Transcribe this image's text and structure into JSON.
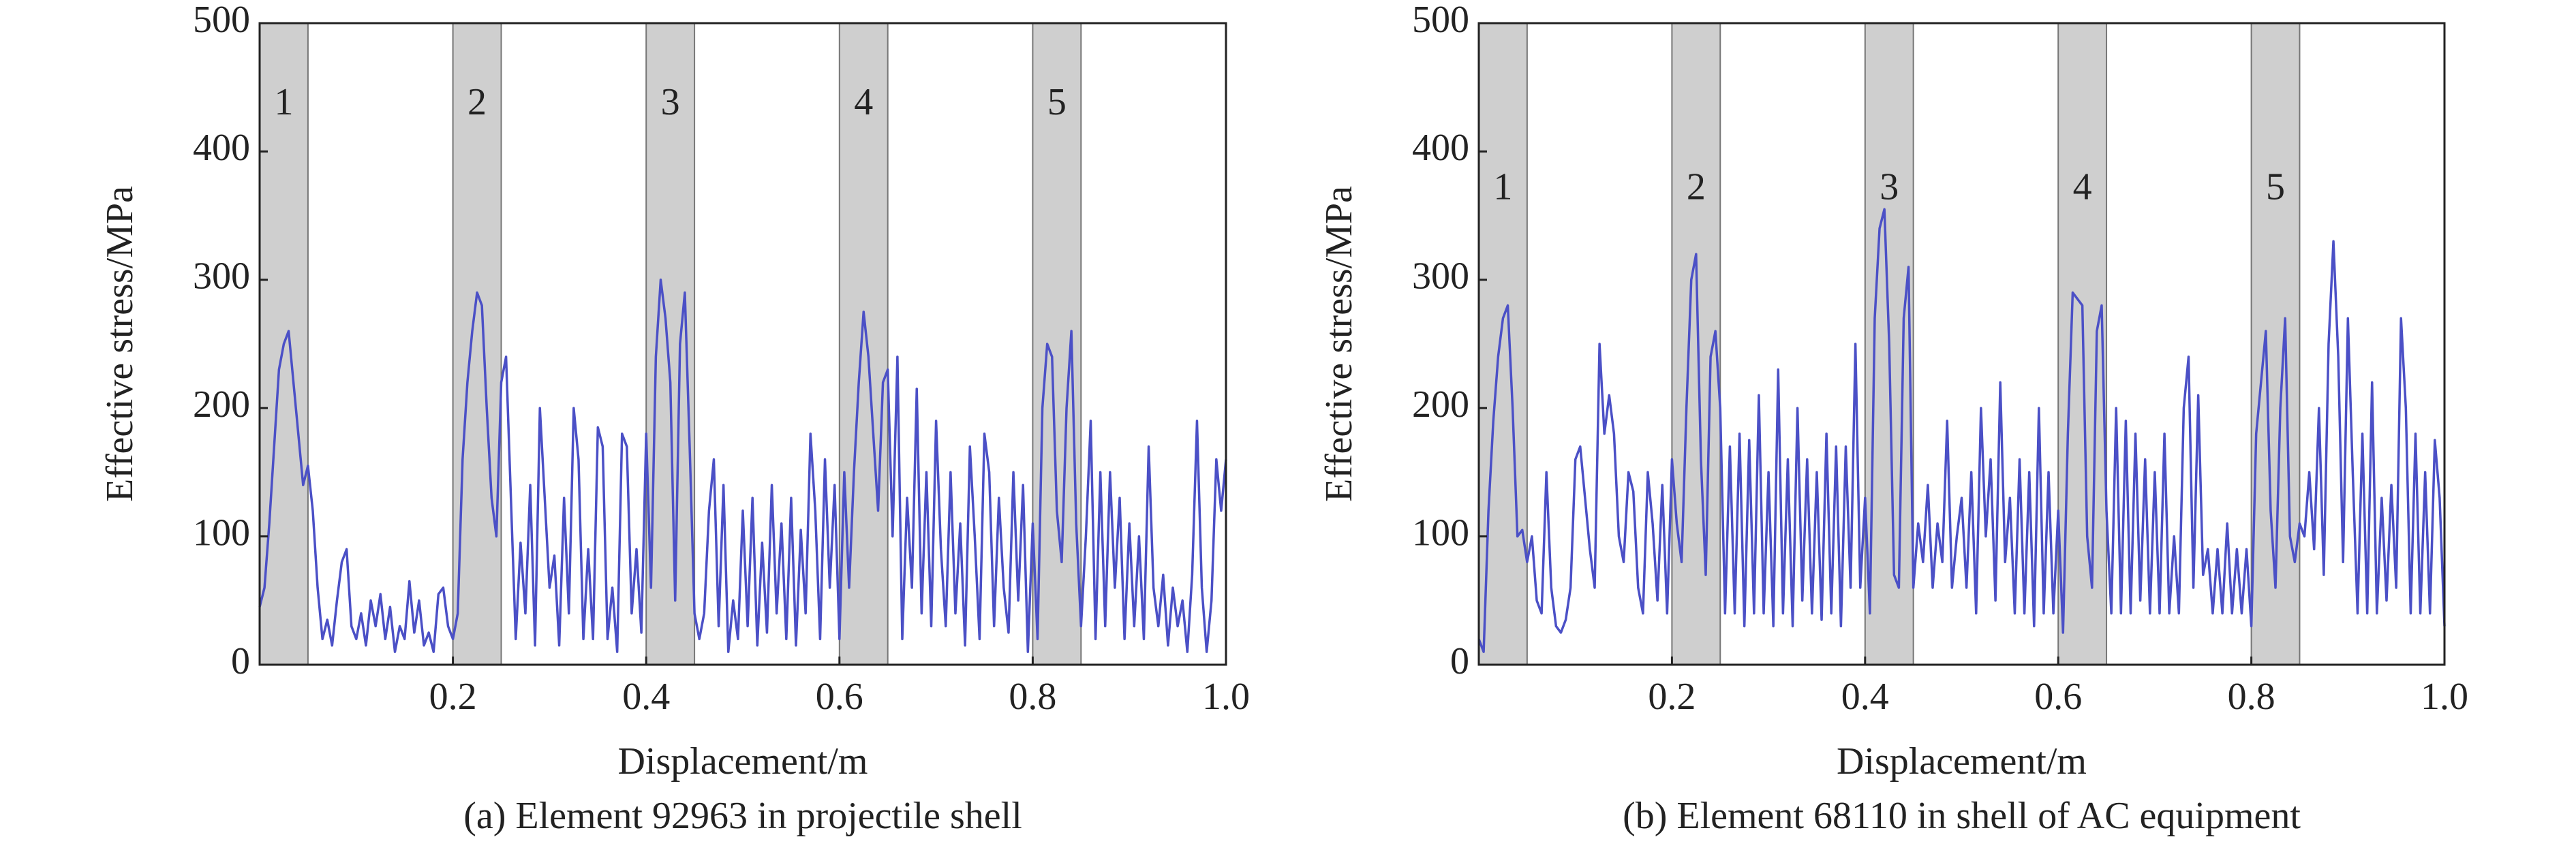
{
  "chart_data": [
    {
      "type": "line",
      "title": "(a) Element 92963 in projectile shell",
      "xlabel": "Displacement/m",
      "ylabel": "Effective stress/MPa",
      "xlim": [
        0,
        1
      ],
      "ylim": [
        0,
        500
      ],
      "xticks": [
        0.2,
        0.4,
        0.6,
        0.8,
        {
          "value": 1,
          "label": "1.0"
        }
      ],
      "yticks": [
        0,
        100,
        200,
        300,
        400,
        500
      ],
      "band_color": "#cfcfcf",
      "bands": [
        {
          "x": [
            0,
            0.05
          ],
          "label": "1"
        },
        {
          "x": [
            0.2,
            0.25
          ],
          "label": "2"
        },
        {
          "x": [
            0.4,
            0.45
          ],
          "label": "3"
        },
        {
          "x": [
            0.6,
            0.65
          ],
          "label": "4"
        },
        {
          "x": [
            0.8,
            0.85
          ],
          "label": "5"
        }
      ],
      "x": [
        0,
        0.005,
        0.01,
        0.015,
        0.02,
        0.025,
        0.03,
        0.035,
        0.04,
        0.045,
        0.05,
        0.055,
        0.06,
        0.065,
        0.07,
        0.075,
        0.08,
        0.085,
        0.09,
        0.095,
        0.1,
        0.105,
        0.11,
        0.115,
        0.12,
        0.125,
        0.13,
        0.135,
        0.14,
        0.145,
        0.15,
        0.155,
        0.16,
        0.165,
        0.17,
        0.175,
        0.18,
        0.185,
        0.19,
        0.195,
        0.2,
        0.205,
        0.21,
        0.215,
        0.22,
        0.225,
        0.23,
        0.235,
        0.24,
        0.245,
        0.25,
        0.255,
        0.26,
        0.265,
        0.27,
        0.275,
        0.28,
        0.285,
        0.29,
        0.295,
        0.3,
        0.305,
        0.31,
        0.315,
        0.32,
        0.325,
        0.33,
        0.335,
        0.34,
        0.345,
        0.35,
        0.355,
        0.36,
        0.365,
        0.37,
        0.375,
        0.38,
        0.385,
        0.39,
        0.395,
        0.4,
        0.405,
        0.41,
        0.415,
        0.42,
        0.425,
        0.43,
        0.435,
        0.44,
        0.445,
        0.45,
        0.455,
        0.46,
        0.465,
        0.47,
        0.475,
        0.48,
        0.485,
        0.49,
        0.495,
        0.5,
        0.505,
        0.51,
        0.515,
        0.52,
        0.525,
        0.53,
        0.535,
        0.54,
        0.545,
        0.55,
        0.555,
        0.56,
        0.565,
        0.57,
        0.575,
        0.58,
        0.585,
        0.59,
        0.595,
        0.6,
        0.605,
        0.61,
        0.615,
        0.62,
        0.625,
        0.63,
        0.635,
        0.64,
        0.645,
        0.65,
        0.655,
        0.66,
        0.665,
        0.67,
        0.675,
        0.68,
        0.685,
        0.69,
        0.695,
        0.7,
        0.705,
        0.71,
        0.715,
        0.72,
        0.725,
        0.73,
        0.735,
        0.74,
        0.745,
        0.75,
        0.755,
        0.76,
        0.765,
        0.77,
        0.775,
        0.78,
        0.785,
        0.79,
        0.795,
        0.8,
        0.805,
        0.81,
        0.815,
        0.82,
        0.825,
        0.83,
        0.835,
        0.84,
        0.845,
        0.85,
        0.855,
        0.86,
        0.865,
        0.87,
        0.875,
        0.88,
        0.885,
        0.89,
        0.895,
        0.9,
        0.905,
        0.91,
        0.915,
        0.92,
        0.925,
        0.93,
        0.935,
        0.94,
        0.945,
        0.95,
        0.955,
        0.96,
        0.965,
        0.97,
        0.975,
        0.98,
        0.985,
        0.99,
        0.995,
        1
      ],
      "series": [
        {
          "color": "#4b50c6",
          "values": [
            45,
            60,
            110,
            170,
            230,
            250,
            260,
            220,
            180,
            140,
            155,
            120,
            60,
            20,
            35,
            15,
            50,
            80,
            90,
            30,
            20,
            40,
            15,
            50,
            30,
            55,
            20,
            45,
            10,
            30,
            20,
            65,
            25,
            50,
            15,
            25,
            10,
            55,
            60,
            30,
            20,
            40,
            160,
            220,
            260,
            290,
            280,
            200,
            130,
            100,
            220,
            240,
            130,
            20,
            95,
            40,
            140,
            15,
            200,
            130,
            60,
            85,
            15,
            130,
            40,
            200,
            160,
            20,
            90,
            20,
            185,
            170,
            20,
            60,
            10,
            180,
            170,
            40,
            90,
            25,
            180,
            60,
            240,
            300,
            270,
            220,
            50,
            250,
            290,
            170,
            40,
            20,
            40,
            120,
            160,
            30,
            140,
            10,
            50,
            20,
            120,
            30,
            130,
            15,
            95,
            25,
            140,
            40,
            110,
            20,
            130,
            15,
            105,
            40,
            180,
            120,
            20,
            160,
            60,
            140,
            20,
            150,
            60,
            150,
            220,
            275,
            240,
            180,
            120,
            220,
            230,
            100,
            240,
            20,
            130,
            60,
            215,
            40,
            150,
            30,
            190,
            90,
            30,
            150,
            40,
            110,
            15,
            170,
            100,
            20,
            180,
            150,
            30,
            130,
            60,
            25,
            150,
            50,
            140,
            10,
            110,
            20,
            200,
            250,
            240,
            120,
            80,
            200,
            260,
            110,
            30,
            100,
            190,
            20,
            150,
            30,
            150,
            60,
            130,
            20,
            110,
            30,
            100,
            20,
            170,
            60,
            30,
            70,
            15,
            60,
            30,
            50,
            10,
            70,
            190,
            60,
            10,
            50,
            160,
            120,
            160
          ]
        }
      ]
    },
    {
      "type": "line",
      "title": "(b) Element 68110 in shell of AC equipment",
      "xlabel": "Displacement/m",
      "ylabel": "Effective stress/MPa",
      "xlim": [
        0,
        1
      ],
      "ylim": [
        0,
        500
      ],
      "xticks": [
        0.2,
        0.4,
        0.6,
        0.8,
        {
          "value": 1,
          "label": "1.0"
        }
      ],
      "yticks": [
        0,
        100,
        200,
        300,
        400,
        500
      ],
      "band_color": "#cfcfcf",
      "bands": [
        {
          "x": [
            0,
            0.05
          ],
          "label": "1"
        },
        {
          "x": [
            0.2,
            0.25
          ],
          "label": "2"
        },
        {
          "x": [
            0.4,
            0.45
          ],
          "label": "3"
        },
        {
          "x": [
            0.6,
            0.65
          ],
          "label": "4"
        },
        {
          "x": [
            0.8,
            0.85
          ],
          "label": "5"
        }
      ],
      "x": [
        0,
        0.005,
        0.01,
        0.015,
        0.02,
        0.025,
        0.03,
        0.035,
        0.04,
        0.045,
        0.05,
        0.055,
        0.06,
        0.065,
        0.07,
        0.075,
        0.08,
        0.085,
        0.09,
        0.095,
        0.1,
        0.105,
        0.11,
        0.115,
        0.12,
        0.125,
        0.13,
        0.135,
        0.14,
        0.145,
        0.15,
        0.155,
        0.16,
        0.165,
        0.17,
        0.175,
        0.18,
        0.185,
        0.19,
        0.195,
        0.2,
        0.205,
        0.21,
        0.215,
        0.22,
        0.225,
        0.23,
        0.235,
        0.24,
        0.245,
        0.25,
        0.255,
        0.26,
        0.265,
        0.27,
        0.275,
        0.28,
        0.285,
        0.29,
        0.295,
        0.3,
        0.305,
        0.31,
        0.315,
        0.32,
        0.325,
        0.33,
        0.335,
        0.34,
        0.345,
        0.35,
        0.355,
        0.36,
        0.365,
        0.37,
        0.375,
        0.38,
        0.385,
        0.39,
        0.395,
        0.4,
        0.405,
        0.41,
        0.415,
        0.42,
        0.425,
        0.43,
        0.435,
        0.44,
        0.445,
        0.45,
        0.455,
        0.46,
        0.465,
        0.47,
        0.475,
        0.48,
        0.485,
        0.49,
        0.495,
        0.5,
        0.505,
        0.51,
        0.515,
        0.52,
        0.525,
        0.53,
        0.535,
        0.54,
        0.545,
        0.55,
        0.555,
        0.56,
        0.565,
        0.57,
        0.575,
        0.58,
        0.585,
        0.59,
        0.595,
        0.6,
        0.605,
        0.61,
        0.615,
        0.62,
        0.625,
        0.63,
        0.635,
        0.64,
        0.645,
        0.65,
        0.655,
        0.66,
        0.665,
        0.67,
        0.675,
        0.68,
        0.685,
        0.69,
        0.695,
        0.7,
        0.705,
        0.71,
        0.715,
        0.72,
        0.725,
        0.73,
        0.735,
        0.74,
        0.745,
        0.75,
        0.755,
        0.76,
        0.765,
        0.77,
        0.775,
        0.78,
        0.785,
        0.79,
        0.795,
        0.8,
        0.805,
        0.81,
        0.815,
        0.82,
        0.825,
        0.83,
        0.835,
        0.84,
        0.845,
        0.85,
        0.855,
        0.86,
        0.865,
        0.87,
        0.875,
        0.88,
        0.885,
        0.89,
        0.895,
        0.9,
        0.905,
        0.91,
        0.915,
        0.92,
        0.925,
        0.93,
        0.935,
        0.94,
        0.945,
        0.95,
        0.955,
        0.96,
        0.965,
        0.97,
        0.975,
        0.98,
        0.985,
        0.99,
        0.995,
        1
      ],
      "series": [
        {
          "color": "#4b50c6",
          "values": [
            20,
            10,
            120,
            190,
            240,
            270,
            280,
            200,
            100,
            105,
            80,
            100,
            50,
            40,
            150,
            60,
            30,
            25,
            35,
            60,
            160,
            170,
            130,
            90,
            60,
            250,
            180,
            210,
            180,
            100,
            80,
            150,
            135,
            60,
            40,
            150,
            110,
            50,
            140,
            40,
            160,
            110,
            80,
            200,
            300,
            320,
            160,
            70,
            240,
            260,
            200,
            40,
            170,
            40,
            180,
            30,
            175,
            40,
            210,
            40,
            150,
            30,
            230,
            40,
            160,
            30,
            200,
            50,
            160,
            40,
            150,
            35,
            180,
            40,
            170,
            30,
            170,
            60,
            250,
            60,
            130,
            40,
            270,
            340,
            355,
            250,
            70,
            60,
            270,
            310,
            60,
            110,
            80,
            140,
            60,
            110,
            80,
            190,
            60,
            100,
            130,
            60,
            150,
            40,
            200,
            100,
            160,
            50,
            220,
            80,
            130,
            40,
            160,
            40,
            150,
            30,
            200,
            40,
            150,
            40,
            120,
            25,
            180,
            290,
            285,
            280,
            100,
            60,
            260,
            280,
            120,
            40,
            200,
            40,
            190,
            40,
            180,
            50,
            160,
            40,
            150,
            40,
            180,
            40,
            100,
            40,
            200,
            240,
            60,
            210,
            70,
            90,
            40,
            90,
            40,
            110,
            40,
            90,
            40,
            90,
            30,
            180,
            220,
            260,
            120,
            60,
            200,
            270,
            100,
            80,
            110,
            100,
            150,
            90,
            200,
            70,
            250,
            330,
            240,
            80,
            270,
            150,
            40,
            180,
            40,
            220,
            40,
            130,
            50,
            140,
            60,
            270,
            200,
            40,
            180,
            40,
            150,
            40,
            175,
            130,
            30
          ]
        }
      ]
    }
  ]
}
